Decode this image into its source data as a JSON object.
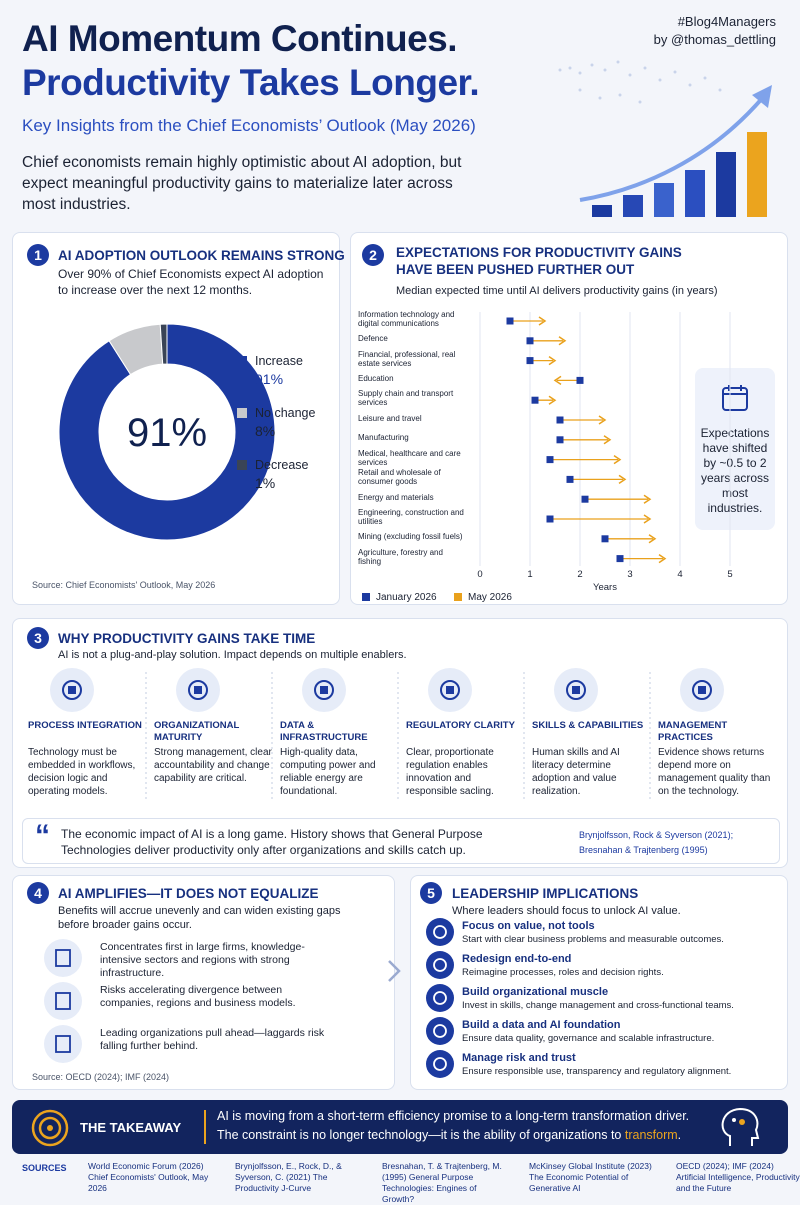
{
  "header": {
    "title_line1": "AI Momentum Continues.",
    "title_line2": "Productivity Takes Longer.",
    "subtitle": "Key Insights from the Chief Economists’ Outlook (May 2026)",
    "intro": "Chief economists remain highly optimistic about AI adoption, but expect meaningful productivity gains to materialize later across most industries.",
    "tag": "#Blog4Managers",
    "author": "by @thomas_dettling"
  },
  "section1": {
    "number": "1",
    "heading": "AI ADOPTION OUTLOOK REMAINS STRONG",
    "text": "Over 90% of Chief Economists expect AI adoption to increase over the next 12 months.",
    "source": "Source: Chief Economists' Outlook, May 2026"
  },
  "section2": {
    "number": "2",
    "heading": "EXPECTATIONS FOR PRODUCTIVITY GAINS HAVE BEEN PUSHED FURTHER OUT",
    "callout": "Expectations have shifted by ~0.5 to 2 years across most industries."
  },
  "chart_data": [
    {
      "type": "pie",
      "donut": true,
      "categories": [
        "Increase",
        "No change",
        "Decrease"
      ],
      "values": [
        91,
        8,
        1
      ],
      "value_labels": [
        "91%",
        "8%",
        "1%"
      ],
      "colors": [
        "#1c3aa0",
        "#c8c9cc",
        "#3a4456"
      ],
      "center_label": "91%",
      "legend": "right"
    },
    {
      "type": "dumbbell",
      "subtitle": "Median expected time until AI delivers productivity gains (in years)",
      "categories": [
        "Information technology and digital communications",
        "Defence",
        "Financial, professional, real estate services",
        "Education",
        "Supply chain and transport services",
        "Leisure and travel",
        "Manufacturing",
        "Medical, healthcare and care services",
        "Retail and wholesale of consumer goods",
        "Energy and materials",
        "Engineering, construction and utilities",
        "Mining (excluding fossil fuels)",
        "Agriculture, forestry and fishing"
      ],
      "series": [
        {
          "name": "January 2026",
          "color": "#1c3aa0",
          "values": [
            0.6,
            1.0,
            1.0,
            2.0,
            1.1,
            1.6,
            1.6,
            1.4,
            1.8,
            2.1,
            1.4,
            2.5,
            2.8
          ]
        },
        {
          "name": "May 2026",
          "color": "#e9a11c",
          "values": [
            1.3,
            1.7,
            1.5,
            1.5,
            1.5,
            2.5,
            2.6,
            2.8,
            2.9,
            3.4,
            3.4,
            3.5,
            3.7
          ]
        }
      ],
      "xlim": [
        0,
        5
      ],
      "xticks": [
        0,
        1,
        2,
        3,
        4,
        5
      ],
      "xlabel": "Years",
      "grid": true,
      "legend": "bottom-left"
    }
  ],
  "section3": {
    "number": "3",
    "heading": "WHY PRODUCTIVITY GAINS TAKE TIME",
    "subtitle": "AI is not a plug-and-play solution. Impact depends on multiple enablers.",
    "enablers": [
      {
        "title": "PROCESS INTEGRATION",
        "text": "Technology must be embedded in workflows, decision logic and operating models."
      },
      {
        "title": "ORGANIZATIONAL MATURITY",
        "text": "Strong management, clear accountability and change capability are critical."
      },
      {
        "title": "DATA & INFRASTRUCTURE",
        "text": "High-quality data, computing power and reliable energy are foundational."
      },
      {
        "title": "REGULATORY CLARITY",
        "text": "Clear, proportionate regulation enables innovation and responsible sacling."
      },
      {
        "title": "SKILLS & CAPABILITIES",
        "text": "Human skills and AI literacy determine adoption and value realization."
      },
      {
        "title": "MANAGEMENT PRACTICES",
        "text": "Evidence shows returns depend more on management quality than on the technology."
      }
    ],
    "quote": "The economic impact of AI is a long game. History shows that General Purpose Technologies deliver productivity only after organizations and skills catch up.",
    "citations": [
      "Brynjolfsson, Rock & Syverson (2021);",
      "Bresnahan & Trajtenberg (1995)"
    ]
  },
  "section4": {
    "number": "4",
    "heading": "AI AMPLIFIES—IT DOES NOT EQUALIZE",
    "intro": "Benefits will accrue unevenly and can widen existing gaps before broader gains occur.",
    "points": [
      "Concentrates first in large firms, knowledge-intensive sectors and regions with strong infrastructure.",
      "Risks accelerating divergence between companies, regions and business models.",
      "Leading organizations pull ahead—laggards risk falling further behind."
    ],
    "source": "Source: OECD (2024); IMF (2024)"
  },
  "section5": {
    "number": "5",
    "heading": "LEADERSHIP IMPLICATIONS",
    "subtitle": "Where leaders should focus to unlock AI value.",
    "implications": [
      {
        "title": "Focus on value, not tools",
        "text": "Start with clear business problems and measurable outcomes."
      },
      {
        "title": "Redesign end-to-end",
        "text": "Reimagine processes, roles and decision rights."
      },
      {
        "title": "Build organizational muscle",
        "text": "Invest in skills, change management and cross-functional teams."
      },
      {
        "title": "Build a data and AI foundation",
        "text": "Ensure data quality, governance and scalable infrastructure."
      },
      {
        "title": "Manage risk and trust",
        "text": "Ensure responsible use, transparency and regulatory alignment."
      }
    ]
  },
  "takeaway": {
    "label": "THE TAKEAWAY",
    "line1": "AI is moving from a short-term efficiency promise to a long-term transformation driver.",
    "line2_start": "The constraint is no longer technology—it is the ability of organizations to ",
    "line2_highlight": "transform",
    "line2_end": "."
  },
  "sources": {
    "label": "SOURCES",
    "items": [
      "World Economic Forum (2026) Chief Economists' Outlook, May 2026",
      "Brynjolfsson, E., Rock, D., & Syverson, C. (2021) The Productivity J-Curve",
      "Bresnahan, T. & Trajtenberg, M. (1995) General Purpose Technologies: Engines of Growth?",
      "McKinsey Global Institute (2023) The Economic Potential of Generative AI",
      "OECD (2024); IMF (2024) Artificial Intelligence, Productivity and the Future"
    ]
  }
}
